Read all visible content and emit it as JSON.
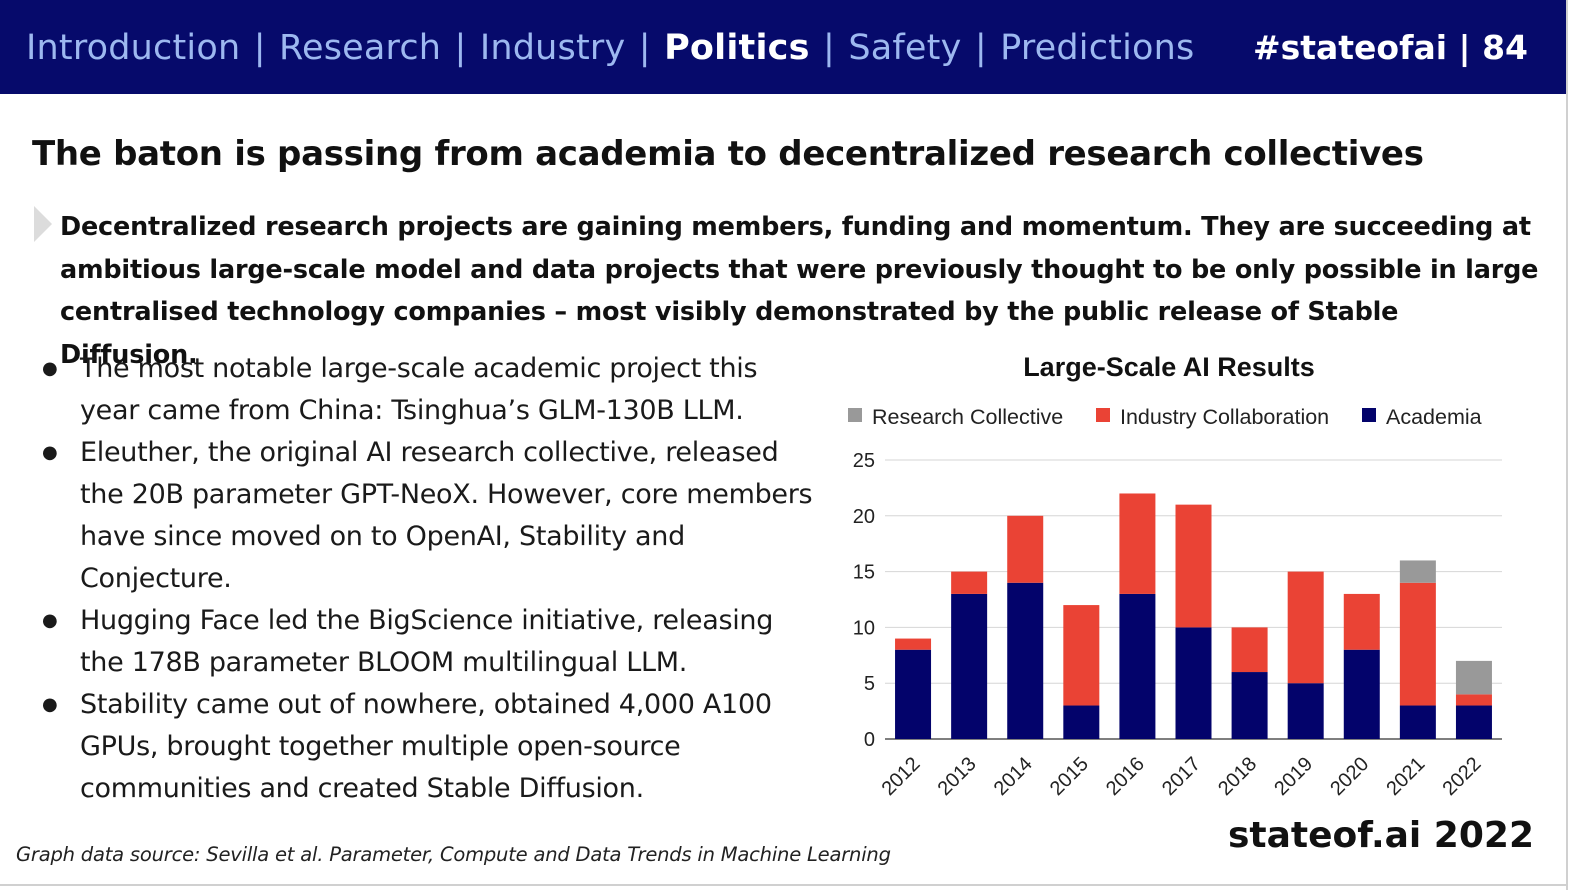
{
  "header": {
    "nav": [
      {
        "label": "Introduction",
        "active": false
      },
      {
        "label": "Research",
        "active": false
      },
      {
        "label": "Industry",
        "active": false
      },
      {
        "label": "Politics",
        "active": true
      },
      {
        "label": "Safety",
        "active": false
      },
      {
        "label": "Predictions",
        "active": false
      }
    ],
    "separator": "|",
    "page_tag": "#stateofai | 84"
  },
  "title": "The baton is passing from academia to decentralized research collectives",
  "subtitle": "Decentralized research projects are gaining members, funding and momentum. They are succeeding at ambitious large-scale model and data projects that were previously thought to be only possible in large centralised technology companies – most visibly demonstrated by the public release of Stable Diffusion.",
  "bullets": [
    "The most notable large-scale academic project this year came from China: Tsinghua’s GLM-130B LLM.",
    "Eleuther, the original AI research collective, released the 20B parameter GPT-NeoX. However, core members have since moved on to OpenAI, Stability and Conjecture.",
    "Hugging Face led the BigScience initiative, releasing the 178B parameter BLOOM multilingual LLM.",
    "Stability came out of nowhere, obtained 4,000 A100 GPUs, brought together multiple open-source communities and created Stable Diffusion."
  ],
  "footer": {
    "source": "Graph data source: Sevilla et al. Parameter, Compute and Data Trends in Machine Learning",
    "brand": "stateof.ai 2022"
  },
  "chart_data": {
    "type": "bar",
    "stacked": true,
    "title": "Large-Scale AI Results",
    "categories": [
      "2012",
      "2013",
      "2014",
      "2015",
      "2016",
      "2017",
      "2018",
      "2019",
      "2020",
      "2021",
      "2022"
    ],
    "series": [
      {
        "name": "Academia",
        "color": "#03036b",
        "values": [
          8,
          13,
          14,
          3,
          13,
          10,
          6,
          5,
          8,
          3,
          3
        ]
      },
      {
        "name": "Industry Collaboration",
        "color": "#ea4335",
        "values": [
          1,
          2,
          6,
          9,
          9,
          11,
          4,
          10,
          5,
          11,
          1
        ]
      },
      {
        "name": "Research Collective",
        "color": "#999999",
        "values": [
          0,
          0,
          0,
          0,
          0,
          0,
          0,
          0,
          0,
          2,
          3
        ]
      }
    ],
    "legend_order": [
      "Research Collective",
      "Industry Collaboration",
      "Academia"
    ],
    "legend_position": "top",
    "ylim": [
      0,
      25
    ],
    "yticks": [
      0,
      5,
      10,
      15,
      20,
      25
    ],
    "grid": true,
    "xlabel": "",
    "ylabel": ""
  }
}
